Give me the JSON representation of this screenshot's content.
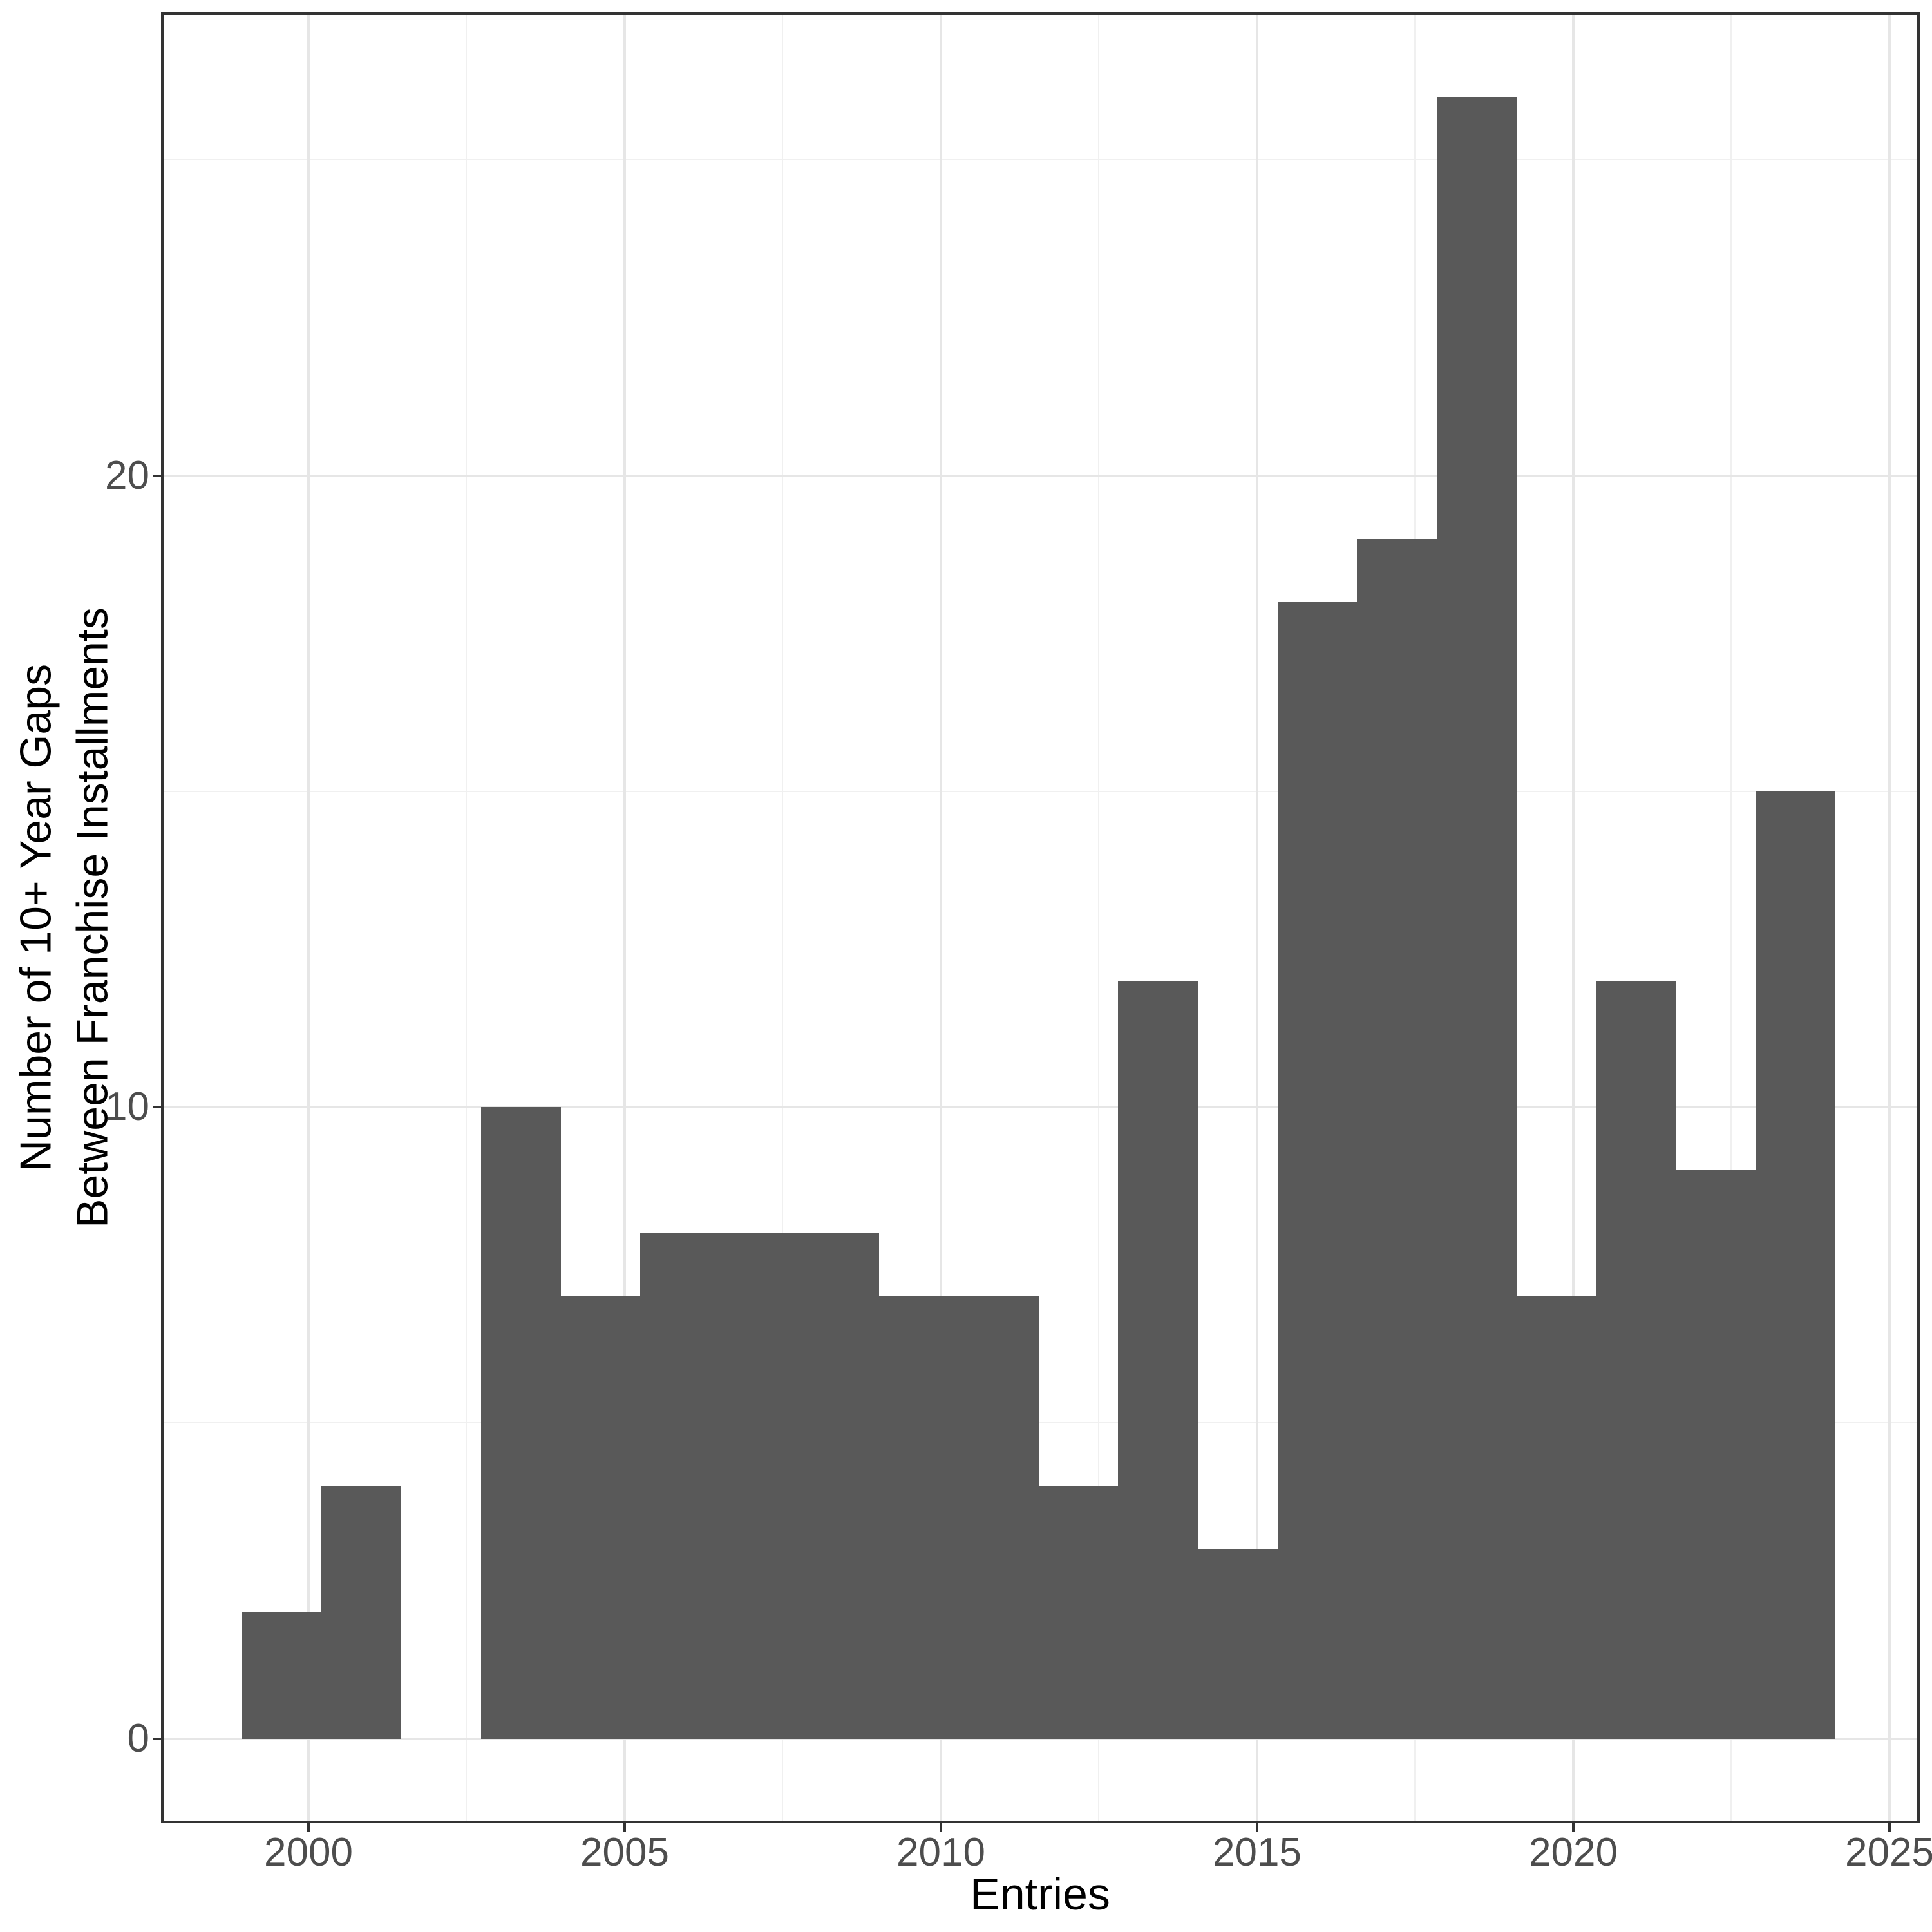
{
  "figure": {
    "background": "#ffffff",
    "x_axis_title": "Entries",
    "y_axis_title": "Number of 10+ Year Gaps\nBetween Franchise Installments",
    "x_tick_labels": [
      "2000",
      "2005",
      "2010",
      "2015",
      "2020",
      "2025"
    ],
    "y_tick_labels": [
      "0",
      "10",
      "20"
    ]
  },
  "chart_data": {
    "type": "bar",
    "subtype": "histogram",
    "title": "",
    "xlabel": "Entries",
    "ylabel": "Number of 10+ Year Gaps\nBetween Franchise Installments",
    "bin_start": 1998.95,
    "bin_width": 1.2596,
    "bin_edges": [
      1998.95,
      2000.21,
      2001.47,
      2002.73,
      2003.99,
      2005.25,
      2006.51,
      2007.77,
      2009.03,
      2010.29,
      2011.55,
      2012.81,
      2014.06,
      2015.32,
      2016.58,
      2017.84,
      2019.1,
      2020.36,
      2021.62,
      2022.88,
      2024.14
    ],
    "values": [
      2,
      4,
      0,
      10,
      7,
      8,
      8,
      8,
      7,
      7,
      4,
      12,
      3,
      18,
      19,
      26,
      7,
      12,
      9,
      15
    ],
    "x_major_ticks": [
      2000,
      2005,
      2010,
      2015,
      2020,
      2025
    ],
    "x_minor_gridlines": [
      2002.5,
      2007.5,
      2012.5,
      2017.5,
      2022.5
    ],
    "y_major_ticks": [
      0,
      10,
      20
    ],
    "y_minor_gridlines": [
      5,
      15,
      25
    ],
    "xlim": [
      1997.71,
      2025.44
    ],
    "ylim": [
      -1.3,
      27.3
    ],
    "grid": true,
    "legend_position": "none",
    "colors": {
      "bar_fill": "#595959",
      "grid_major": "#e6e6e6",
      "grid_minor": "#f0f0f0",
      "panel_border": "#333333",
      "tick_mark": "#333333",
      "tick_label": "#4d4d4d",
      "axis_title": "#000000",
      "background": "#ffffff"
    }
  }
}
